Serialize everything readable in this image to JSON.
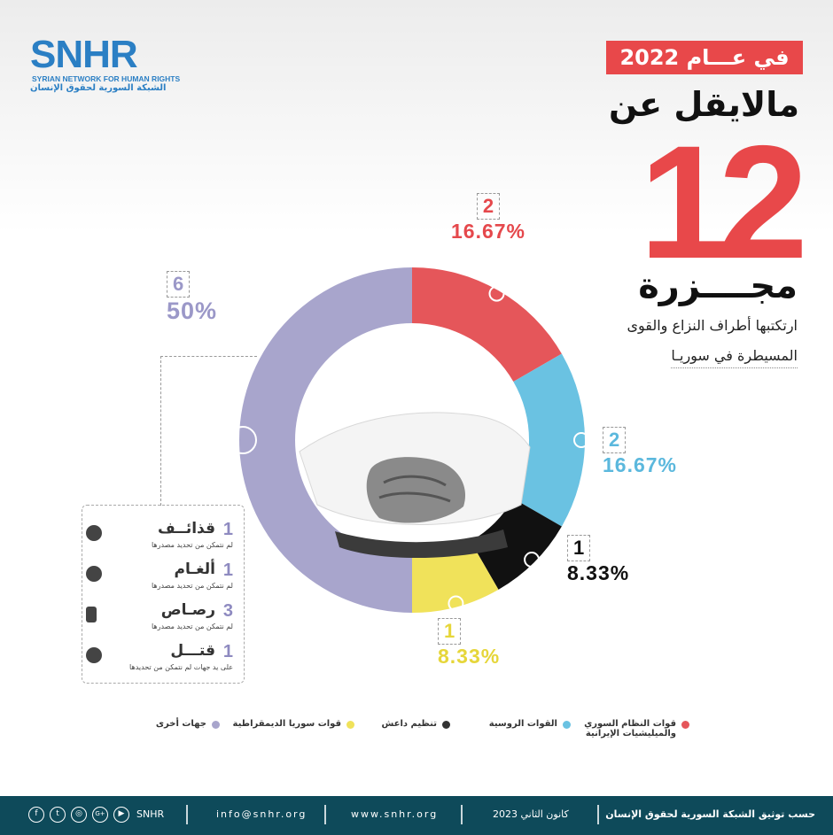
{
  "brand": {
    "logo_text": "SNHR",
    "logo_en": "SYRIAN NETWORK FOR HUMAN RIGHTS",
    "logo_ar": "الشبكة السورية لحقوق الإنسان"
  },
  "header": {
    "year_banner": "في عـــام 2022",
    "line1": "مالايقل عن",
    "big_number": "12",
    "line2": "مجــــزرة",
    "sub1": "ارتكتبها أطراف النزاع والقوى",
    "sub2": "المسيطرة في سوريـا"
  },
  "chart_data": {
    "type": "pie",
    "variant": "donut",
    "total": 12,
    "series": [
      {
        "name": "قوات النظام السوري والميليشيات الإيرانية",
        "count": "2",
        "pct": "16.67%",
        "value": 2,
        "color": "#e5565a"
      },
      {
        "name": "القوات الروسية",
        "count": "2",
        "pct": "16.67%",
        "value": 2,
        "color": "#6ac2e2"
      },
      {
        "name": "تنظيم داعش",
        "count": "1",
        "pct": "8.33%",
        "value": 1,
        "color": "#111111"
      },
      {
        "name": "قوات سوريا الديمقراطية",
        "count": "1",
        "pct": "8.33%",
        "value": 1,
        "color": "#f0e25a"
      },
      {
        "name": "جهات أخرى",
        "count": "6",
        "pct": "50%",
        "value": 6,
        "color": "#a8a5cc"
      }
    ],
    "label_colors": [
      "#e5484c",
      "#5bb8dd",
      "#111111",
      "#e6d63a",
      "#9b98c8"
    ]
  },
  "breakdown": [
    {
      "num": "1",
      "title": "قذائــف",
      "note": "لم نتمكن من تحديد مصدرها",
      "icon": "shell-icon"
    },
    {
      "num": "1",
      "title": "ألغـام",
      "note": "لم نتمكن من تحديد مصدرها",
      "icon": "mine-icon"
    },
    {
      "num": "3",
      "title": "رصـاص",
      "note": "لم نتمكن من تحديد مصدرها",
      "icon": "bullets-icon"
    },
    {
      "num": "1",
      "title": "قتـــل",
      "note": "على يد جهات لم نتمكن من تحديدها",
      "icon": "knife-icon"
    }
  ],
  "legend": [
    {
      "label": "قوات النظام السوري والميليشيات الإيرانية",
      "line1": "قوات النظام السوري",
      "line2": "والميليشيات الإيرانية",
      "color": "#e5565a"
    },
    {
      "label": "القوات الروسية",
      "color": "#6ac2e2"
    },
    {
      "label": "تنظيم داعش",
      "color": "#333333"
    },
    {
      "label": "قوات سوريا الديمقراطية",
      "color": "#f0e25a"
    },
    {
      "label": "جهات أخرى",
      "color": "#a8a5cc"
    }
  ],
  "footer": {
    "source": "حسب توثيق الشبكة السورية لحقوق الإنسان",
    "date": "كانون الثاني 2023",
    "website": "www.snhr.org",
    "email": "info@snhr.org",
    "handle": "SNHR",
    "social": [
      "facebook-icon",
      "twitter-icon",
      "instagram-icon",
      "googleplus-icon",
      "youtube-icon"
    ]
  }
}
